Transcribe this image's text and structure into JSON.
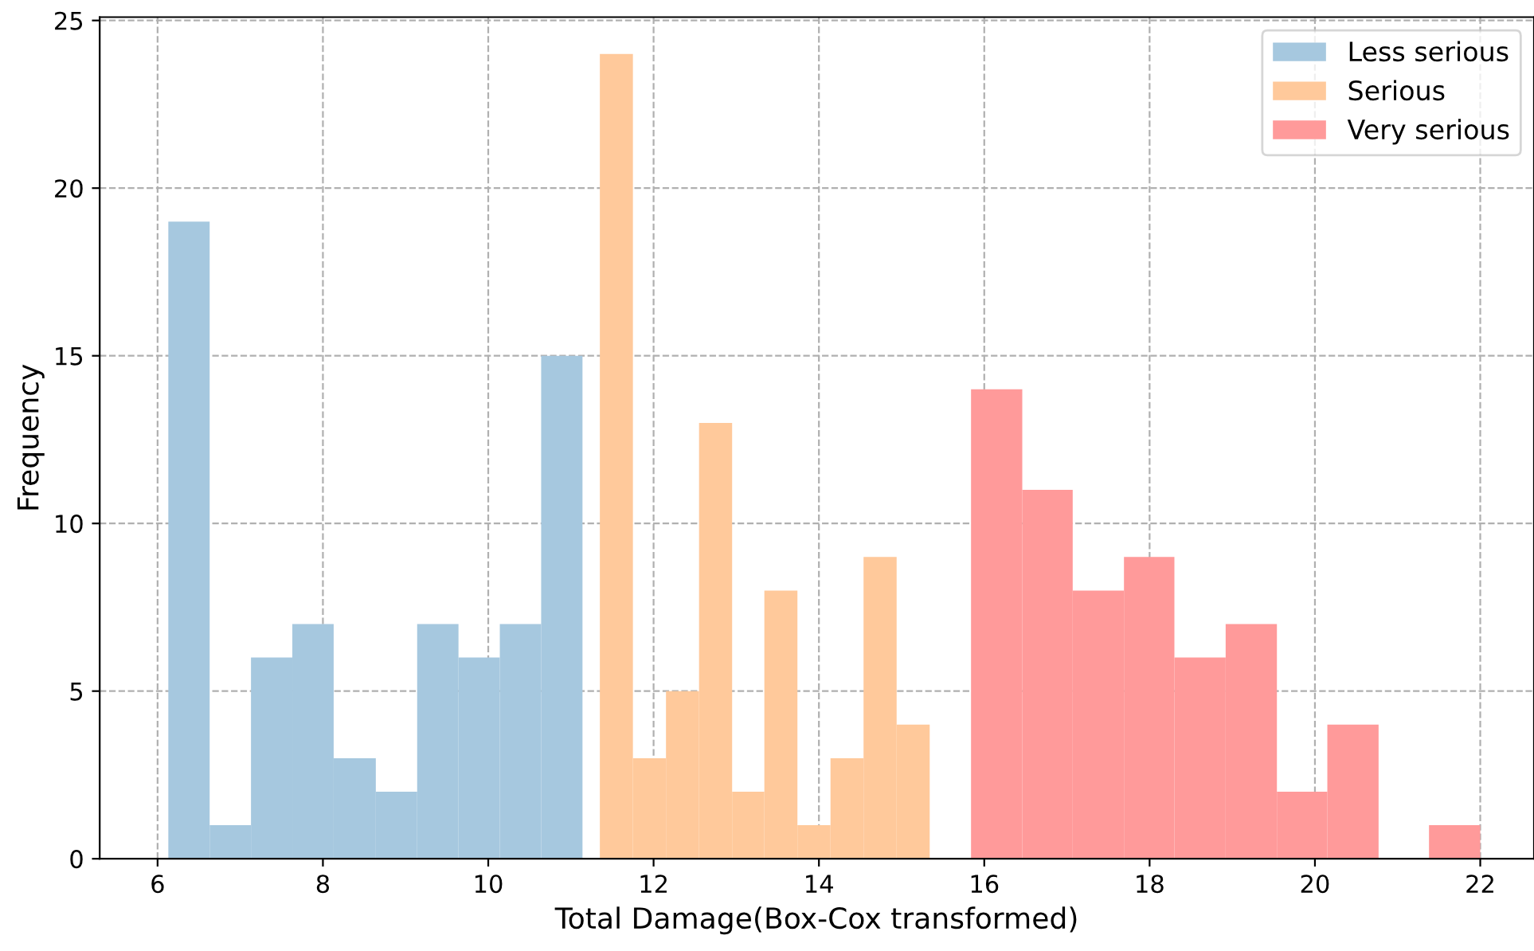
{
  "chart_data": {
    "type": "histogram",
    "xlabel": "Total Damage(Box-Cox transformed)",
    "ylabel": "Frequency",
    "bins": [
      6.13,
      6.63,
      7.13,
      7.63,
      8.13,
      8.64,
      9.14,
      9.64,
      10.14,
      10.64,
      11.14,
      11.35,
      11.75,
      12.15,
      12.55,
      12.95,
      13.34,
      13.74,
      14.14,
      14.54,
      14.94,
      15.34,
      15.84,
      16.46,
      17.07,
      17.69,
      18.3,
      18.92,
      19.54,
      20.15,
      20.77,
      21.38,
      22.0
    ],
    "series": [
      {
        "name": "Less serious",
        "color": "#a6c8df",
        "values": [
          19,
          1,
          6,
          7,
          3,
          2,
          7,
          6,
          7,
          15,
          null,
          null,
          null,
          null,
          null,
          null,
          null,
          null,
          null,
          null,
          null,
          null,
          null,
          null,
          null,
          null,
          null,
          null,
          null,
          null,
          null,
          null
        ]
      },
      {
        "name": "Serious",
        "color": "#ffc99b",
        "values": [
          null,
          null,
          null,
          null,
          null,
          null,
          null,
          null,
          null,
          null,
          null,
          24,
          3,
          5,
          13,
          2,
          8,
          1,
          3,
          9,
          4,
          null,
          null,
          null,
          null,
          null,
          null,
          null,
          null,
          null,
          null,
          null
        ]
      },
      {
        "name": "Very serious",
        "color": "#ff9a9a",
        "values": [
          null,
          null,
          null,
          null,
          null,
          null,
          null,
          null,
          null,
          null,
          null,
          null,
          null,
          null,
          null,
          null,
          null,
          null,
          null,
          null,
          null,
          null,
          14,
          11,
          8,
          9,
          6,
          7,
          2,
          4,
          0,
          1
        ]
      }
    ],
    "xlim": [
      5.3,
      22.65
    ],
    "ylim": [
      0,
      25.1
    ],
    "xticks": [
      6,
      8,
      10,
      12,
      14,
      16,
      18,
      20,
      22
    ],
    "yticks": [
      0,
      5,
      10,
      15,
      20,
      25
    ],
    "grid": true,
    "legend": "top right"
  }
}
